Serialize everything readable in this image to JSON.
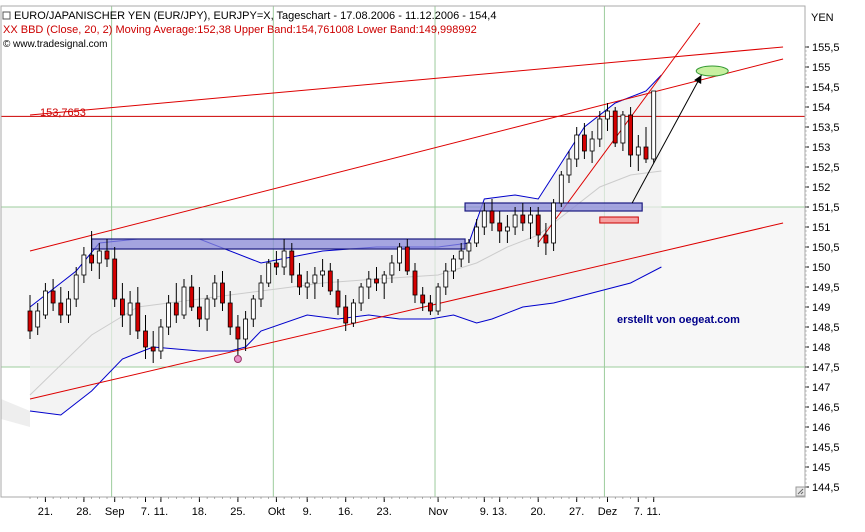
{
  "header": {
    "title": "EURO/JAPANISCHER YEN (EUR/JPY), EURJPY=X, Tageschart - 17.08.2006 - 11.12.2006 - 154,4",
    "indicator": "XX BBD (Close, 20, 2) Moving Average:152,38 Upper Band:154,761008 Lower Band:149,998992",
    "source": "www.tradesignal.com"
  },
  "annotations": {
    "price_line_label": "153,7653",
    "watermark": "erstellt von oegeat.com"
  },
  "chart_data": {
    "type": "candlestick",
    "title": "EURO/JAPANISCHER YEN (EUR/JPY), EURJPY=X, Tageschart - 17.08.2006 - 11.12.2006 - 154,4",
    "ylabel": "YEN",
    "ylim": [
      144.3,
      155.9
    ],
    "y_ticks": [
      "144,5",
      "145",
      "145,5",
      "146",
      "146,5",
      "147",
      "147,5",
      "148",
      "148,5",
      "149",
      "149,5",
      "150",
      "150,5",
      "151",
      "151,5",
      "152",
      "152,5",
      "153",
      "153,5",
      "154",
      "154,5",
      "155",
      "155,5"
    ],
    "y_tick_values": [
      144.5,
      145,
      145.5,
      146,
      146.5,
      147,
      147.5,
      148,
      148.5,
      149,
      149.5,
      150,
      150.5,
      151,
      151.5,
      152,
      152.5,
      153,
      153.5,
      154,
      154.5,
      155,
      155.5
    ],
    "x_ticks": [
      {
        "label": "21.",
        "i": 2
      },
      {
        "label": "28.",
        "i": 7
      },
      {
        "label": "Sep",
        "i": 11
      },
      {
        "label": "7.",
        "i": 15
      },
      {
        "label": "11.",
        "i": 17
      },
      {
        "label": "18.",
        "i": 22
      },
      {
        "label": "25.",
        "i": 27
      },
      {
        "label": "Okt",
        "i": 32
      },
      {
        "label": "9.",
        "i": 36
      },
      {
        "label": "16.",
        "i": 41
      },
      {
        "label": "23.",
        "i": 46
      },
      {
        "label": "Nov",
        "i": 53
      },
      {
        "label": "9.",
        "i": 59
      },
      {
        "label": "13.",
        "i": 61
      },
      {
        "label": "20.",
        "i": 66
      },
      {
        "label": "27.",
        "i": 71
      },
      {
        "label": "Dez",
        "i": 75
      },
      {
        "label": "7.",
        "i": 79
      },
      {
        "label": "11.",
        "i": 81
      }
    ],
    "candles": [
      [
        148.9,
        149.3,
        148.2,
        148.4
      ],
      [
        148.5,
        149.1,
        148.3,
        148.9
      ],
      [
        148.8,
        149.6,
        148.7,
        149.4
      ],
      [
        149.4,
        149.7,
        148.9,
        149.1
      ],
      [
        149.1,
        149.5,
        148.6,
        148.8
      ],
      [
        148.8,
        149.4,
        148.6,
        149.2
      ],
      [
        149.2,
        150.0,
        149.0,
        149.8
      ],
      [
        149.8,
        150.5,
        149.6,
        150.3
      ],
      [
        150.3,
        150.9,
        149.9,
        150.1
      ],
      [
        150.1,
        150.6,
        149.7,
        150.4
      ],
      [
        150.4,
        150.7,
        150.0,
        150.2
      ],
      [
        150.2,
        150.5,
        149.0,
        149.2
      ],
      [
        149.2,
        149.6,
        148.5,
        148.8
      ],
      [
        148.8,
        149.4,
        148.3,
        149.1
      ],
      [
        149.1,
        149.5,
        148.2,
        148.4
      ],
      [
        148.4,
        148.8,
        147.7,
        148.0
      ],
      [
        148.0,
        148.4,
        147.6,
        147.9
      ],
      [
        147.9,
        148.7,
        147.7,
        148.5
      ],
      [
        148.5,
        149.3,
        148.3,
        149.1
      ],
      [
        149.1,
        149.6,
        148.6,
        148.8
      ],
      [
        148.8,
        149.7,
        148.7,
        149.5
      ],
      [
        149.5,
        149.8,
        148.9,
        149.0
      ],
      [
        149.0,
        149.5,
        148.5,
        148.7
      ],
      [
        148.7,
        149.3,
        148.4,
        149.2
      ],
      [
        149.2,
        149.8,
        149.0,
        149.6
      ],
      [
        149.6,
        149.9,
        148.9,
        149.1
      ],
      [
        149.1,
        149.4,
        148.3,
        148.5
      ],
      [
        148.5,
        148.8,
        147.8,
        148.2
      ],
      [
        148.2,
        148.9,
        147.9,
        148.7
      ],
      [
        148.7,
        149.3,
        148.5,
        149.2
      ],
      [
        149.2,
        149.8,
        149.0,
        149.6
      ],
      [
        149.6,
        150.2,
        149.5,
        150.1
      ],
      [
        150.1,
        150.4,
        149.8,
        150.0
      ],
      [
        150.0,
        150.7,
        149.8,
        150.4
      ],
      [
        150.4,
        150.6,
        149.6,
        149.8
      ],
      [
        149.8,
        150.1,
        149.3,
        149.5
      ],
      [
        149.5,
        149.9,
        149.2,
        149.6
      ],
      [
        149.6,
        150.0,
        149.2,
        149.8
      ],
      [
        149.8,
        150.2,
        149.5,
        149.9
      ],
      [
        149.9,
        150.1,
        149.3,
        149.4
      ],
      [
        149.4,
        149.7,
        148.8,
        149.0
      ],
      [
        149.0,
        149.3,
        148.4,
        148.6
      ],
      [
        148.6,
        149.2,
        148.5,
        149.1
      ],
      [
        149.1,
        149.6,
        148.9,
        149.5
      ],
      [
        149.5,
        149.9,
        149.2,
        149.7
      ],
      [
        149.7,
        150.0,
        149.4,
        149.6
      ],
      [
        149.6,
        149.9,
        149.2,
        149.8
      ],
      [
        149.8,
        150.3,
        149.6,
        150.1
      ],
      [
        150.1,
        150.6,
        149.9,
        150.5
      ],
      [
        150.5,
        150.7,
        149.8,
        149.9
      ],
      [
        149.9,
        150.1,
        149.1,
        149.3
      ],
      [
        149.3,
        149.5,
        148.9,
        149.1
      ],
      [
        149.1,
        149.3,
        148.8,
        148.9
      ],
      [
        148.9,
        149.6,
        148.8,
        149.5
      ],
      [
        149.5,
        150.1,
        149.3,
        149.9
      ],
      [
        149.9,
        150.3,
        149.7,
        150.2
      ],
      [
        150.2,
        150.6,
        150.0,
        150.4
      ],
      [
        150.4,
        150.7,
        150.1,
        150.6
      ],
      [
        150.6,
        151.2,
        150.5,
        151.0
      ],
      [
        151.0,
        151.6,
        150.8,
        151.4
      ],
      [
        151.4,
        151.7,
        150.9,
        151.1
      ],
      [
        151.1,
        151.4,
        150.6,
        150.9
      ],
      [
        150.9,
        151.3,
        150.6,
        151.0
      ],
      [
        151.0,
        151.5,
        150.8,
        151.3
      ],
      [
        151.3,
        151.6,
        150.9,
        151.1
      ],
      [
        151.1,
        151.5,
        150.7,
        151.3
      ],
      [
        151.3,
        151.5,
        150.5,
        150.8
      ],
      [
        150.8,
        151.1,
        150.3,
        150.6
      ],
      [
        150.6,
        151.7,
        150.4,
        151.6
      ],
      [
        151.6,
        152.4,
        151.5,
        152.3
      ],
      [
        152.3,
        152.9,
        152.1,
        152.7
      ],
      [
        152.7,
        153.5,
        152.5,
        153.3
      ],
      [
        153.3,
        153.6,
        152.7,
        152.9
      ],
      [
        152.9,
        153.4,
        152.6,
        153.2
      ],
      [
        153.2,
        153.9,
        153.0,
        153.7
      ],
      [
        153.7,
        154.1,
        153.4,
        153.9
      ],
      [
        153.9,
        154.0,
        153.0,
        153.1
      ],
      [
        153.1,
        153.9,
        152.9,
        153.8
      ],
      [
        153.8,
        154.0,
        152.5,
        152.8
      ],
      [
        152.8,
        153.3,
        152.4,
        153.0
      ],
      [
        153.0,
        153.5,
        152.6,
        152.7
      ],
      [
        152.7,
        154.4,
        152.6,
        154.4
      ]
    ],
    "bands": {
      "upper": [
        [
          0,
          149.0
        ],
        [
          6,
          149.9
        ],
        [
          9,
          150.6
        ],
        [
          14,
          150.7
        ],
        [
          22,
          150.7
        ],
        [
          30,
          150.1
        ],
        [
          38,
          150.4
        ],
        [
          45,
          150.5
        ],
        [
          53,
          150.5
        ],
        [
          57,
          150.6
        ],
        [
          59,
          151.7
        ],
        [
          63,
          151.8
        ],
        [
          66,
          151.7
        ],
        [
          69,
          152.6
        ],
        [
          72,
          153.5
        ],
        [
          76,
          154.1
        ],
        [
          80,
          154.4
        ],
        [
          82,
          154.8
        ]
      ],
      "middle": [
        [
          0,
          146.8
        ],
        [
          8,
          148.3
        ],
        [
          14,
          149.0
        ],
        [
          22,
          149.2
        ],
        [
          30,
          149.4
        ],
        [
          38,
          149.6
        ],
        [
          45,
          149.7
        ],
        [
          53,
          149.8
        ],
        [
          58,
          150.1
        ],
        [
          62,
          150.5
        ],
        [
          66,
          150.8
        ],
        [
          70,
          151.4
        ],
        [
          74,
          152.0
        ],
        [
          78,
          152.3
        ],
        [
          82,
          152.4
        ]
      ],
      "lower": [
        [
          0,
          146.4
        ],
        [
          4,
          146.3
        ],
        [
          8,
          146.9
        ],
        [
          12,
          147.7
        ],
        [
          16,
          148.0
        ],
        [
          22,
          147.9
        ],
        [
          26,
          147.9
        ],
        [
          28,
          148.0
        ],
        [
          30,
          148.4
        ],
        [
          36,
          148.8
        ],
        [
          40,
          148.7
        ],
        [
          44,
          148.8
        ],
        [
          48,
          148.7
        ],
        [
          52,
          148.7
        ],
        [
          55,
          148.8
        ],
        [
          58,
          148.6
        ],
        [
          60,
          148.7
        ],
        [
          64,
          149.0
        ],
        [
          68,
          149.1
        ],
        [
          70,
          149.2
        ],
        [
          74,
          149.4
        ],
        [
          78,
          149.6
        ],
        [
          82,
          150.0
        ]
      ]
    },
    "bollinger": {
      "period": 20,
      "stddev": 2,
      "moving_average": 152.38,
      "upper_band": 154.761008,
      "lower_band": 149.998992
    },
    "drawings": {
      "horizontal_level": 153.7653,
      "support_line": [
        [
          0,
          146.7
        ],
        [
          97.8,
          151.1
        ]
      ],
      "channel_upper": [
        [
          0,
          153.8
        ],
        [
          97.8,
          155.5
        ]
      ],
      "channel_middle": [
        [
          0,
          150.4
        ],
        [
          97.8,
          155.2
        ]
      ],
      "short_uptrend": [
        [
          66,
          150.6
        ],
        [
          87,
          156.1
        ]
      ],
      "box_left": {
        "i0": 8,
        "i1": 56.5,
        "y0": 150.45,
        "y1": 150.7
      },
      "box_right": {
        "i0": 56.5,
        "i1": 79.5,
        "y0": 151.4,
        "y1": 151.6
      },
      "small_box": {
        "i0": 74,
        "i1": 79,
        "y0": 151.1,
        "y1": 151.25
      },
      "target_ellipse": {
        "i": 88.6,
        "y": 154.9
      },
      "arrow": [
        [
          78.2,
          151.6
        ],
        [
          87.2,
          154.8
        ]
      ],
      "circle_marker": {
        "i": 27,
        "y": 147.7
      }
    }
  }
}
